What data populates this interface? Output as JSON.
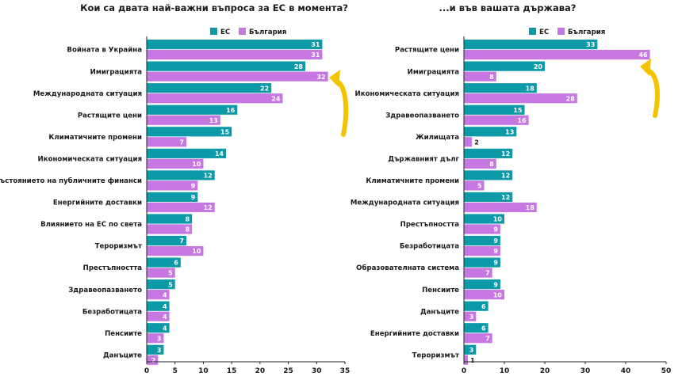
{
  "colors": {
    "eu": "#0d9aa8",
    "bg": "#c677e2",
    "arrow": "#f4c300",
    "axis": "#222222",
    "text": "#1a1a1a"
  },
  "chart_data": [
    {
      "type": "bar",
      "orientation": "horizontal",
      "title": "Кои са двата най-важни въпроса за ЕС в момента?",
      "legend": [
        "ЕС",
        "България"
      ],
      "legend_position": "top",
      "xlim": [
        0,
        35
      ],
      "xticks": [
        0,
        5,
        10,
        15,
        20,
        25,
        30,
        35
      ],
      "grid": false,
      "categories": [
        "Войната в Украйна",
        "Имиграцията",
        "Международната ситуация",
        "Растящите цени",
        "Климатичните промени",
        "Икономическата ситуация",
        "Състоянието на публичните финанси",
        "Енергийните доставки",
        "Влиянието на ЕС по света",
        "Тероризмът",
        "Престъпността",
        "Здравеопазването",
        "Безработицата",
        "Пенсиите",
        "Данъците"
      ],
      "series": [
        {
          "name": "ЕС",
          "values": [
            31,
            28,
            22,
            16,
            15,
            14,
            12,
            9,
            8,
            7,
            6,
            5,
            4,
            4,
            3
          ]
        },
        {
          "name": "България",
          "values": [
            31,
            32,
            24,
            13,
            7,
            10,
            9,
            12,
            8,
            10,
            5,
            4,
            4,
            3,
            2
          ]
        }
      ],
      "annotation": "arrow-pointing-to-bulgaria-immigration-bar"
    },
    {
      "type": "bar",
      "orientation": "horizontal",
      "title": "...и във вашата държава?",
      "legend": [
        "ЕС",
        "България"
      ],
      "legend_position": "top",
      "xlim": [
        0,
        50
      ],
      "xticks": [
        0,
        10,
        20,
        30,
        40,
        50
      ],
      "grid": false,
      "categories": [
        "Растящите цени",
        "Имиграцията",
        "Икономическата ситуация",
        "Здравеопазването",
        "Жилищата",
        "Държавният дълг",
        "Климатичните промени",
        "Международната ситуация",
        "Престъпността",
        "Безработицата",
        "Образователната система",
        "Пенсиите",
        "Данъците",
        "Енергийните доставки",
        "Тероризмът"
      ],
      "series": [
        {
          "name": "ЕС",
          "values": [
            33,
            20,
            18,
            15,
            13,
            12,
            12,
            12,
            10,
            9,
            9,
            9,
            6,
            6,
            3
          ]
        },
        {
          "name": "България",
          "values": [
            46,
            8,
            28,
            16,
            2,
            8,
            5,
            18,
            9,
            9,
            7,
            10,
            3,
            7,
            1
          ]
        }
      ],
      "annotation": "arrow-pointing-to-bulgaria-rising-prices-bar"
    }
  ]
}
